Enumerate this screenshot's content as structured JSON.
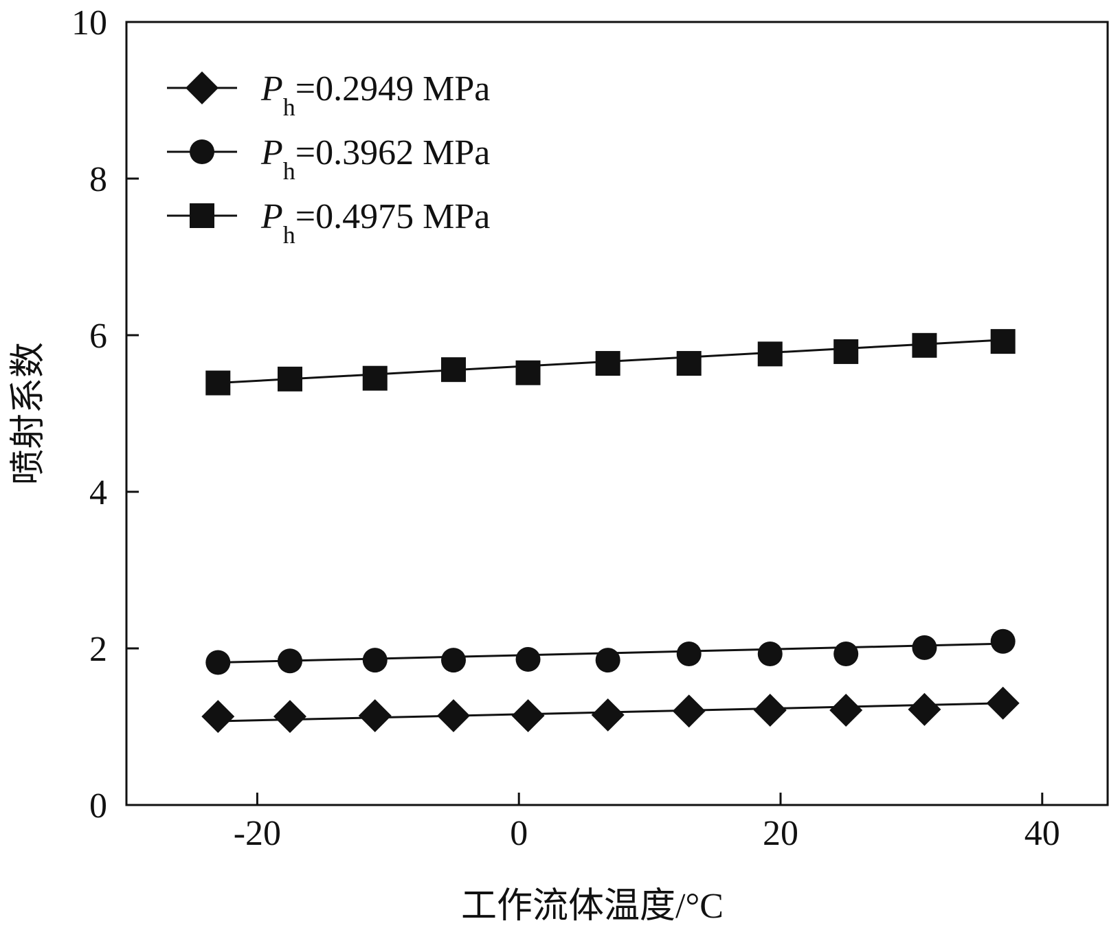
{
  "chart_data": {
    "type": "line",
    "title": "",
    "xlabel": "工作流体温度/°C",
    "ylabel": "喷射系数",
    "xlim": [
      -30,
      45
    ],
    "ylim": [
      0,
      10
    ],
    "x_ticks": [
      -20,
      0,
      20,
      40
    ],
    "y_ticks": [
      0,
      2,
      4,
      6,
      8,
      10
    ],
    "x": [
      -23,
      -17.5,
      -11,
      -5,
      0.7,
      6.8,
      13,
      19.2,
      25,
      31,
      37
    ],
    "series": [
      {
        "name": "Ph=0.2949 MPa",
        "label_var": "P",
        "label_sub": "h",
        "label_rest": "=0.2949 MPa",
        "marker": "diamond",
        "values": [
          1.13,
          1.13,
          1.14,
          1.14,
          1.14,
          1.15,
          1.2,
          1.21,
          1.21,
          1.22,
          1.3
        ],
        "fit": [
          1.07,
          1.3
        ]
      },
      {
        "name": "Ph=0.3962 MPa",
        "label_var": "P",
        "label_sub": "h",
        "label_rest": "=0.3962 MPa",
        "marker": "circle",
        "values": [
          1.82,
          1.84,
          1.85,
          1.85,
          1.86,
          1.85,
          1.93,
          1.93,
          1.93,
          2.01,
          2.09
        ],
        "fit": [
          1.82,
          2.06
        ]
      },
      {
        "name": "Ph=0.4975 MPa",
        "label_var": "P",
        "label_sub": "h",
        "label_rest": "=0.4975 MPa",
        "marker": "square",
        "values": [
          5.39,
          5.44,
          5.45,
          5.56,
          5.52,
          5.64,
          5.64,
          5.76,
          5.79,
          5.87,
          5.92
        ],
        "fit": [
          5.39,
          5.94
        ]
      }
    ],
    "legend_position": "top-left",
    "grid": false
  }
}
